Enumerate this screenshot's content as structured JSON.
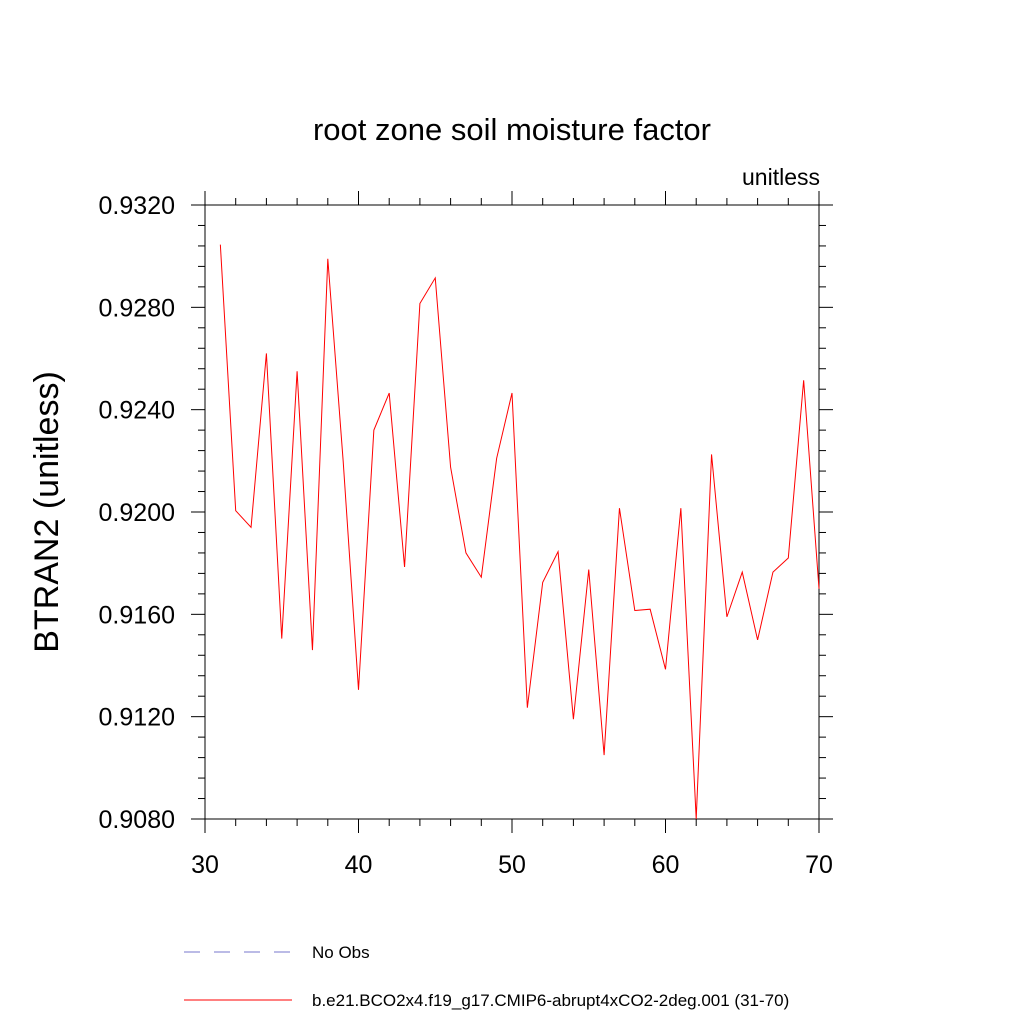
{
  "chart_data": {
    "type": "line",
    "title": "root zone soil moisture factor",
    "units_label": "unitless",
    "ylabel": "BTRAN2  (unitless)",
    "xlabel": "",
    "xlim": [
      30,
      70
    ],
    "ylim": [
      0.908,
      0.932
    ],
    "x_ticks": [
      30,
      40,
      50,
      60,
      70
    ],
    "x_tick_labels": [
      "30",
      "40",
      "50",
      "60",
      "70"
    ],
    "y_ticks": [
      0.908,
      0.912,
      0.916,
      0.92,
      0.924,
      0.928,
      0.932
    ],
    "y_tick_labels": [
      "0.9080",
      "0.9120",
      "0.9160",
      "0.9200",
      "0.9240",
      "0.9280",
      "0.9320"
    ],
    "grid": false,
    "series": [
      {
        "name": "b.e21.BCO2x4.f19_g17.CMIP6-abrupt4xCO2-2deg.001 (31-70)",
        "color": "#ff0000",
        "style": "solid",
        "x": [
          31,
          32,
          33,
          34,
          35,
          36,
          37,
          38,
          39,
          40,
          41,
          42,
          43,
          44,
          45,
          46,
          47,
          48,
          49,
          50,
          51,
          52,
          53,
          54,
          55,
          56,
          57,
          58,
          59,
          60,
          61,
          62,
          63,
          64,
          65,
          66,
          67,
          68,
          69,
          70
        ],
        "values": [
          0.93045,
          0.92005,
          0.9194,
          0.9262,
          0.91505,
          0.9255,
          0.9146,
          0.9299,
          0.922,
          0.91305,
          0.9232,
          0.92465,
          0.91785,
          0.92815,
          0.92915,
          0.92175,
          0.9184,
          0.91745,
          0.9221,
          0.92465,
          0.91235,
          0.91725,
          0.91845,
          0.9119,
          0.91775,
          0.9105,
          0.92015,
          0.91615,
          0.9162,
          0.91385,
          0.92015,
          0.908,
          0.92225,
          0.9159,
          0.91765,
          0.915,
          0.91765,
          0.9182,
          0.92515,
          0.917
        ]
      }
    ],
    "legend": {
      "placement": "bottom",
      "entries": [
        {
          "label": "No Obs",
          "color": "#7777cc",
          "style": "dashed"
        },
        {
          "label": "b.e21.BCO2x4.f19_g17.CMIP6-abrupt4xCO2-2deg.001 (31-70)",
          "color": "#ff0000",
          "style": "solid"
        }
      ]
    }
  }
}
